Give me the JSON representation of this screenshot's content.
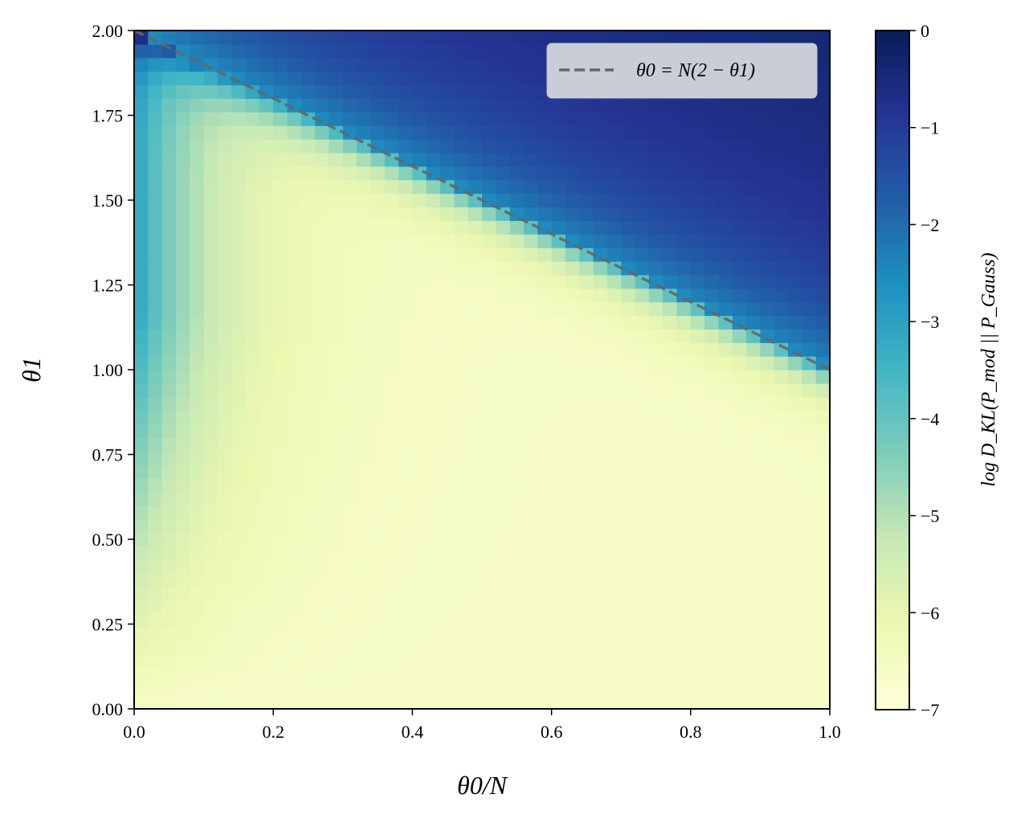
{
  "chart_data": {
    "type": "heatmap",
    "title": "",
    "xlabel": "θ0/N",
    "ylabel": "θ1",
    "xlim": [
      0.0,
      1.0
    ],
    "ylim": [
      0.0,
      2.0
    ],
    "x_ticks": [
      "0.0",
      "0.2",
      "0.4",
      "0.6",
      "0.8",
      "1.0"
    ],
    "x_tick_values": [
      0.0,
      0.2,
      0.4,
      0.6,
      0.8,
      1.0
    ],
    "y_ticks": [
      "0.00",
      "0.25",
      "0.50",
      "0.75",
      "1.00",
      "1.25",
      "1.50",
      "1.75",
      "2.00"
    ],
    "y_tick_values": [
      0.0,
      0.25,
      0.5,
      0.75,
      1.0,
      1.25,
      1.5,
      1.75,
      2.0
    ],
    "grid": false,
    "colormap": "YlGnBu",
    "colormap_stops": [
      "#ffffd9",
      "#edf8b1",
      "#c7e9b4",
      "#7fcdbb",
      "#41b6c4",
      "#1d91c0",
      "#225ea8",
      "#253494",
      "#081d58"
    ],
    "colorbar": {
      "label": "log D_KL(P_mod || P_Gauss)",
      "range": [
        -7,
        0
      ],
      "ticks": [
        "0",
        "−1",
        "−2",
        "−3",
        "−4",
        "−5",
        "−6",
        "−7"
      ],
      "tick_values": [
        0,
        -1,
        -2,
        -3,
        -4,
        -5,
        -6,
        -7
      ]
    },
    "grid_size": {
      "nx": 50,
      "ny": 50
    },
    "series": [
      {
        "name": "θ0 = N(2 − θ1)",
        "type": "line",
        "style": "dashed",
        "color": "#666666",
        "x": [
          0.0,
          1.0
        ],
        "y": [
          2.0,
          1.0
        ]
      }
    ],
    "legend": {
      "position": "top-right",
      "entries": [
        "θ0 = N(2 − θ1)"
      ]
    }
  }
}
